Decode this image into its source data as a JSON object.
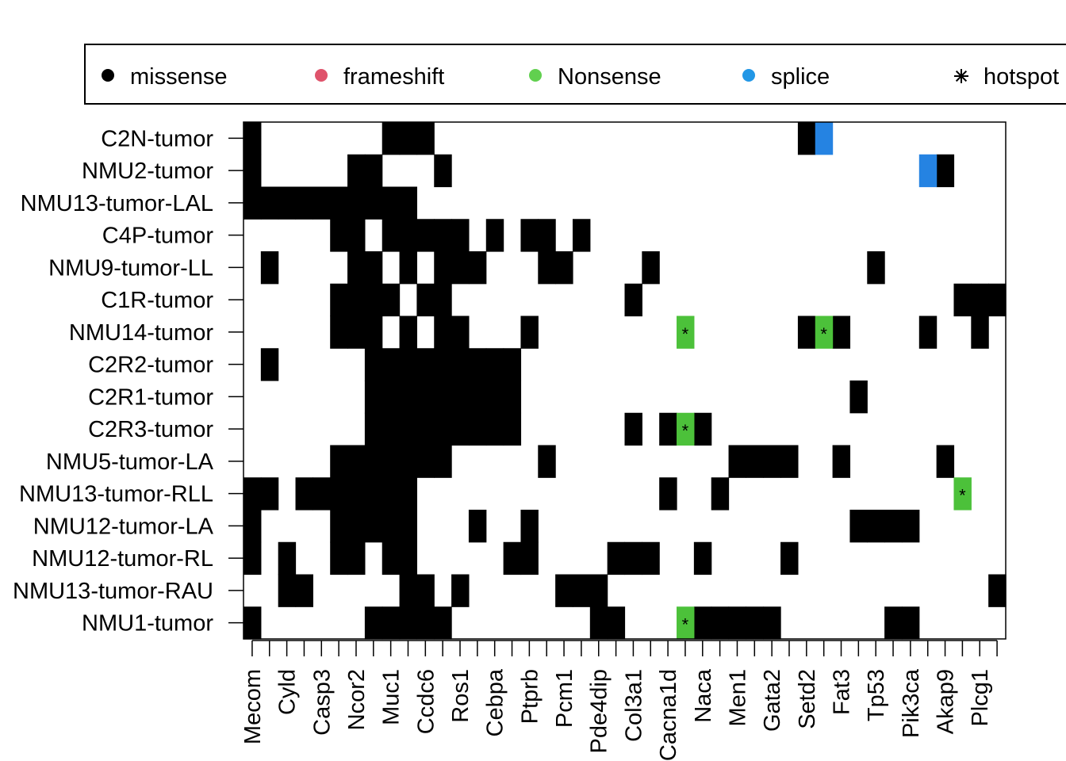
{
  "chart_data": {
    "type": "heatmap",
    "title": "",
    "xlabel": "",
    "ylabel": "",
    "grid": false,
    "legend_position": "top",
    "legend": [
      {
        "label": "missense",
        "color": "#000000",
        "symbol": "dot"
      },
      {
        "label": "frameshift",
        "color": "#DF536B",
        "symbol": "dot"
      },
      {
        "label": "Nonsense",
        "color": "#61D04F",
        "symbol": "dot"
      },
      {
        "label": "splice",
        "color": "#2297E6",
        "symbol": "dot"
      },
      {
        "label": "hotspot",
        "color": "#000000",
        "symbol": "asterisk"
      }
    ],
    "colors": {
      "missense": "#000000",
      "frameshift": "#DF536B",
      "nonsense": "#4CC13A",
      "splice": "#2583E2",
      "none": "#ffffff"
    },
    "samples": [
      "C2N-tumor",
      "NMU2-tumor",
      "NMU13-tumor-LAL",
      "C4P-tumor",
      "NMU9-tumor-LL",
      "C1R-tumor",
      "NMU14-tumor",
      "C2R2-tumor",
      "C2R1-tumor",
      "C2R3-tumor",
      "NMU5-tumor-LA",
      "NMU13-tumor-RLL",
      "NMU12-tumor-LA",
      "NMU12-tumor-RL",
      "NMU13-tumor-RAU",
      "NMU1-tumor"
    ],
    "gene_labels": [
      "Mecom",
      "Cyld",
      "Casp3",
      "Ncor2",
      "Muc1",
      "Ccdc6",
      "Ros1",
      "Cebpa",
      "Ptprb",
      "Pcm1",
      "Pde4dip",
      "Col3a1",
      "Cacna1d",
      "Naca",
      "Men1",
      "Gata2",
      "Setd2",
      "Fat3",
      "Tp53",
      "Pik3ca",
      "Akap9",
      "Plcg1"
    ],
    "n_columns": 44,
    "gene_label_columns": [
      0,
      2,
      4,
      6,
      8,
      10,
      12,
      14,
      16,
      18,
      20,
      22,
      24,
      26,
      28,
      30,
      32,
      34,
      36,
      38,
      40,
      42
    ],
    "cells": [
      {
        "sample": "C2N-tumor",
        "missense": [
          0,
          8,
          9,
          10,
          32
        ],
        "splice": [
          33
        ],
        "nonsense": [],
        "hotspot": []
      },
      {
        "sample": "NMU2-tumor",
        "missense": [
          0,
          6,
          7,
          11,
          40
        ],
        "splice": [
          39
        ],
        "nonsense": [],
        "hotspot": []
      },
      {
        "sample": "NMU13-tumor-LAL",
        "missense": [
          0,
          1,
          2,
          3,
          4,
          5,
          6,
          7,
          8,
          9
        ],
        "splice": [],
        "nonsense": [],
        "hotspot": []
      },
      {
        "sample": "C4P-tumor",
        "missense": [
          5,
          6,
          8,
          9,
          10,
          11,
          12,
          14,
          16,
          17,
          19
        ],
        "splice": [],
        "nonsense": [],
        "hotspot": []
      },
      {
        "sample": "NMU9-tumor-LL",
        "missense": [
          1,
          6,
          7,
          9,
          11,
          12,
          13,
          17,
          18,
          23,
          36
        ],
        "splice": [],
        "nonsense": [],
        "hotspot": []
      },
      {
        "sample": "C1R-tumor",
        "missense": [
          5,
          6,
          7,
          8,
          10,
          11,
          22,
          41,
          42,
          43
        ],
        "splice": [],
        "nonsense": [],
        "hotspot": []
      },
      {
        "sample": "NMU14-tumor",
        "missense": [
          5,
          6,
          7,
          9,
          11,
          12,
          16,
          32,
          34,
          39,
          42
        ],
        "splice": [],
        "nonsense": [
          25,
          33
        ],
        "hotspot": [
          25,
          33
        ]
      },
      {
        "sample": "C2R2-tumor",
        "missense": [
          1,
          7,
          8,
          9,
          10,
          11,
          12,
          13,
          14,
          15
        ],
        "splice": [],
        "nonsense": [],
        "hotspot": []
      },
      {
        "sample": "C2R1-tumor",
        "missense": [
          7,
          8,
          9,
          10,
          11,
          12,
          13,
          14,
          15,
          35
        ],
        "splice": [],
        "nonsense": [],
        "hotspot": []
      },
      {
        "sample": "C2R3-tumor",
        "missense": [
          7,
          8,
          9,
          10,
          11,
          12,
          13,
          14,
          15,
          22,
          24,
          26
        ],
        "splice": [],
        "nonsense": [
          25
        ],
        "hotspot": [
          25
        ]
      },
      {
        "sample": "NMU5-tumor-LA",
        "missense": [
          5,
          6,
          7,
          8,
          9,
          10,
          11,
          17,
          28,
          29,
          30,
          31,
          34,
          40
        ],
        "splice": [],
        "nonsense": [],
        "hotspot": []
      },
      {
        "sample": "NMU13-tumor-RLL",
        "missense": [
          0,
          1,
          3,
          4,
          5,
          6,
          7,
          8,
          9,
          24,
          27
        ],
        "splice": [],
        "nonsense": [
          41
        ],
        "hotspot": [
          41
        ]
      },
      {
        "sample": "NMU12-tumor-LA",
        "missense": [
          0,
          5,
          6,
          7,
          8,
          9,
          13,
          16,
          35,
          36,
          37,
          38
        ],
        "splice": [],
        "nonsense": [],
        "hotspot": []
      },
      {
        "sample": "NMU12-tumor-RL",
        "missense": [
          0,
          2,
          5,
          6,
          8,
          9,
          15,
          16,
          21,
          22,
          23,
          26,
          31
        ],
        "splice": [],
        "nonsense": [],
        "hotspot": []
      },
      {
        "sample": "NMU13-tumor-RAU",
        "missense": [
          2,
          3,
          9,
          10,
          12,
          18,
          19,
          20,
          43
        ],
        "splice": [],
        "nonsense": [],
        "hotspot": []
      },
      {
        "sample": "NMU1-tumor",
        "missense": [
          0,
          7,
          8,
          9,
          10,
          11,
          20,
          21,
          26,
          27,
          28,
          29,
          30,
          37,
          38
        ],
        "splice": [],
        "nonsense": [
          25
        ],
        "hotspot": [
          25
        ]
      }
    ]
  }
}
